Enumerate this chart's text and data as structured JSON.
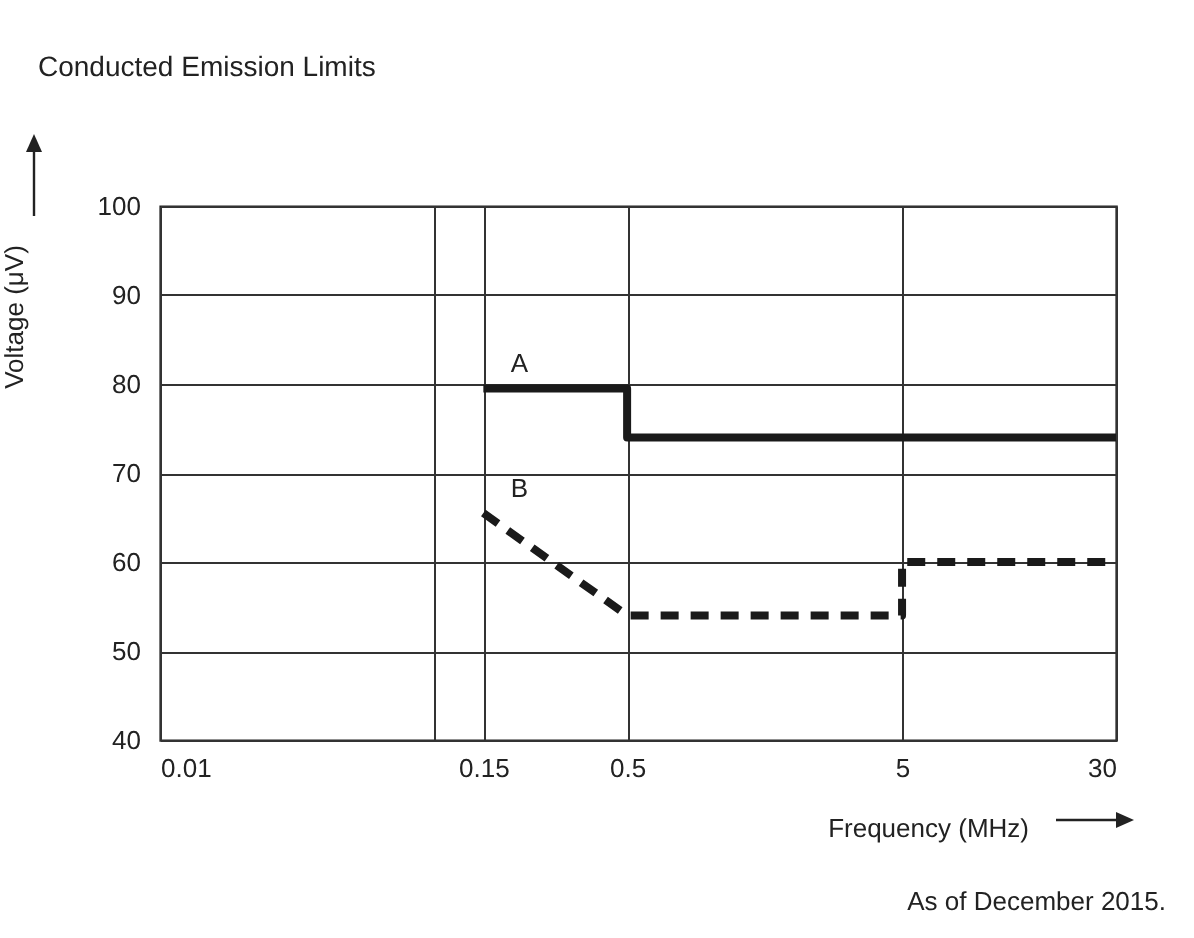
{
  "chart_data": {
    "type": "line",
    "title": "Conducted Emission Limits",
    "xlabel": "Frequency (MHz)",
    "ylabel": "Voltage (μV)",
    "annotations": [
      "As of December 2015."
    ],
    "series": [
      {
        "name": "A",
        "color": "#1a1a1a",
        "x": [
          0.15,
          0.5,
          0.5,
          30
        ],
        "values": [
          79.5,
          79.5,
          74,
          74
        ],
        "line_style": "solid"
      },
      {
        "name": "B",
        "color": "#1a1a1a",
        "x": [
          0.15,
          0.5,
          5,
          5,
          30
        ],
        "values": [
          65.5,
          54,
          54,
          60,
          60
        ],
        "line_style": "dashed"
      }
    ],
    "log": "x",
    "xlim": [
      0.01,
      30
    ],
    "xticks": [
      0.01,
      {
        "value": 0.1,
        "label": null
      },
      0.15,
      0.5,
      5,
      30
    ],
    "ylim": [
      40,
      100
    ],
    "yticks": [
      40,
      50,
      60,
      70,
      80,
      90,
      100
    ],
    "grid": true,
    "marker": "none"
  }
}
